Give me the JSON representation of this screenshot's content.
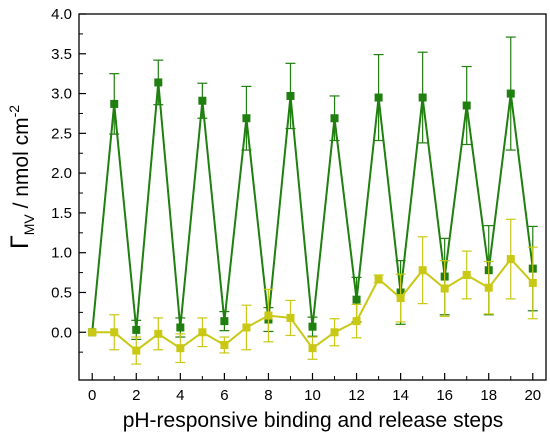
{
  "chart_data": {
    "type": "line",
    "xlabel": "pH-responsive binding and release steps",
    "ylabel": {
      "symbol": "Γ",
      "subscript": "MV",
      "unit": " / nmol cm",
      "exponent": "-2"
    },
    "xlim": [
      -0.6,
      20.6
    ],
    "ylim": [
      -0.6,
      4.0
    ],
    "x_ticks": [
      0,
      2,
      4,
      6,
      8,
      10,
      12,
      14,
      16,
      18,
      20
    ],
    "x_tick_labels": [
      "0",
      "2",
      "4",
      "6",
      "8",
      "10",
      "12",
      "14",
      "16",
      "18",
      "20"
    ],
    "y_ticks": [
      0.0,
      0.5,
      1.0,
      1.5,
      2.0,
      2.5,
      3.0,
      3.5,
      4.0
    ],
    "y_tick_labels": [
      "0.0",
      "0.5",
      "1.0",
      "1.5",
      "2.0",
      "2.5",
      "3.0",
      "3.5",
      "4.0"
    ],
    "grid": false,
    "legend": "none",
    "series": [
      {
        "color": "#1f7f0f",
        "x": [
          0,
          1,
          2,
          3,
          4,
          5,
          6,
          7,
          8,
          9,
          10,
          11,
          12,
          13,
          14,
          15,
          16,
          17,
          18,
          19,
          20
        ],
        "y": [
          0.0,
          2.87,
          0.03,
          3.14,
          0.06,
          2.91,
          0.14,
          2.69,
          0.16,
          2.97,
          0.07,
          2.69,
          0.41,
          2.95,
          0.5,
          2.95,
          0.7,
          2.85,
          0.78,
          3.0,
          0.8
        ],
        "error": [
          0.0,
          0.38,
          0.12,
          0.28,
          0.12,
          0.22,
          0.12,
          0.4,
          0.15,
          0.41,
          0.12,
          0.28,
          0.28,
          0.54,
          0.4,
          0.57,
          0.48,
          0.49,
          0.56,
          0.71,
          0.53
        ]
      },
      {
        "color": "#c9c814",
        "x": [
          0,
          1,
          2,
          3,
          4,
          5,
          6,
          7,
          8,
          9,
          10,
          11,
          12,
          13,
          14,
          15,
          16,
          17,
          18,
          19,
          20
        ],
        "y": [
          0.0,
          0.0,
          -0.23,
          -0.02,
          -0.2,
          0.0,
          -0.16,
          0.06,
          0.21,
          0.18,
          -0.2,
          0.0,
          0.14,
          0.67,
          0.43,
          0.78,
          0.55,
          0.72,
          0.56,
          0.92,
          0.62
        ],
        "error": [
          0.0,
          0.22,
          0.17,
          0.2,
          0.18,
          0.18,
          0.1,
          0.28,
          0.33,
          0.22,
          0.14,
          0.17,
          0.21,
          0.05,
          0.3,
          0.42,
          0.35,
          0.3,
          0.33,
          0.5,
          0.45
        ]
      }
    ]
  }
}
